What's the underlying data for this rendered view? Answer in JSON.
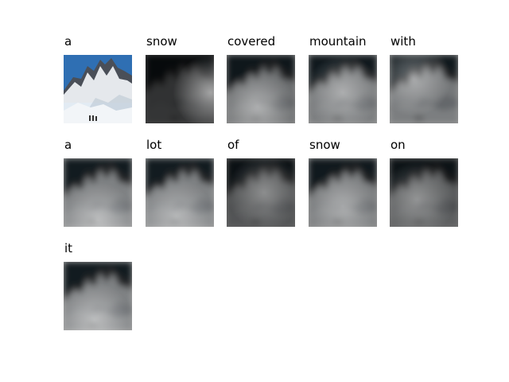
{
  "words": [
    "a",
    "snow",
    "covered",
    "mountain",
    "with",
    "a",
    "lot",
    "of",
    "snow",
    "on",
    "it"
  ],
  "tiles": [
    {
      "kind": "photo"
    },
    {
      "kind": "attention",
      "focus": [
        0.95,
        0.55
      ],
      "strength": 0.55,
      "dim": 0.75
    },
    {
      "kind": "attention",
      "focus": [
        0.45,
        0.75
      ],
      "strength": 0.45,
      "dim": 0.45
    },
    {
      "kind": "attention",
      "focus": [
        0.5,
        0.55
      ],
      "strength": 0.4,
      "dim": 0.4
    },
    {
      "kind": "attention",
      "focus": [
        0.35,
        0.35
      ],
      "strength": 0.4,
      "dim": 0.4
    },
    {
      "kind": "attention",
      "focus": [
        0.5,
        0.9
      ],
      "strength": 0.45,
      "dim": 0.35
    },
    {
      "kind": "attention",
      "focus": [
        0.45,
        0.85
      ],
      "strength": 0.4,
      "dim": 0.35
    },
    {
      "kind": "attention",
      "focus": [
        0.55,
        0.5
      ],
      "strength": 0.35,
      "dim": 0.6
    },
    {
      "kind": "attention",
      "focus": [
        0.5,
        0.7
      ],
      "strength": 0.4,
      "dim": 0.4
    },
    {
      "kind": "attention",
      "focus": [
        0.4,
        0.6
      ],
      "strength": 0.35,
      "dim": 0.55
    },
    {
      "kind": "attention",
      "focus": [
        0.45,
        0.85
      ],
      "strength": 0.45,
      "dim": 0.35
    }
  ],
  "colors": {
    "sky": "#2f6fb3",
    "rock": "#4a4f58",
    "snow": "#f2f5f8",
    "shadow": "#b8c4d2",
    "dark": "#000000"
  }
}
